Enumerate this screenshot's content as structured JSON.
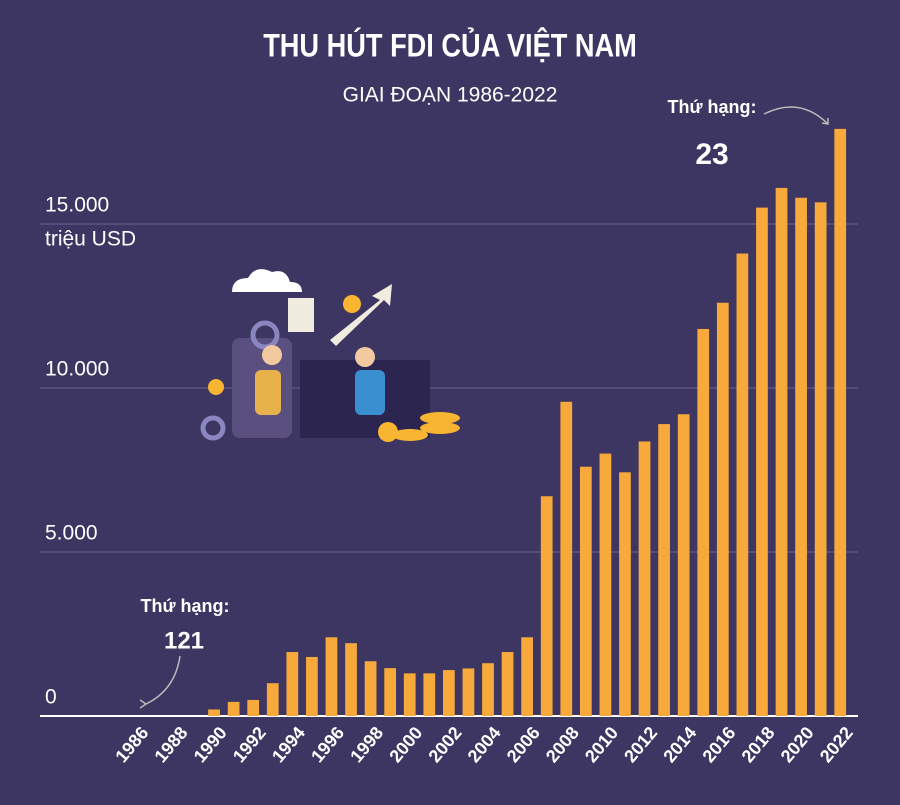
{
  "chart_data": {
    "type": "bar",
    "title": "THU HÚT FDI CỦA VIỆT NAM",
    "subtitle": "GIAI ĐOẠN 1986-2022",
    "y_label": "triệu USD",
    "categories": [
      "1986",
      null,
      "1988",
      null,
      "1990",
      null,
      "1992",
      null,
      "1994",
      null,
      "1996",
      null,
      "1998",
      null,
      "2000",
      null,
      "2002",
      null,
      "2004",
      null,
      "2006",
      null,
      "2008",
      null,
      "2010",
      null,
      "2012",
      null,
      "2014",
      null,
      "2016",
      null,
      "2018",
      null,
      "2020",
      null,
      "2022"
    ],
    "values": [
      0,
      0,
      0,
      0,
      200,
      430,
      490,
      1000,
      1950,
      1800,
      2400,
      2220,
      1670,
      1460,
      1300,
      1300,
      1400,
      1450,
      1610,
      1950,
      2400,
      6700,
      9580,
      7600,
      8000,
      7430,
      8370,
      8900,
      9200,
      11800,
      12600,
      14100,
      15500,
      16100,
      15800,
      15660,
      17900
    ],
    "color": "#f7a93b",
    "ylim": [
      0,
      18000
    ],
    "yticks": [
      {
        "value": 0,
        "label": "0"
      },
      {
        "value": 5000,
        "label": "5.000"
      },
      {
        "value": 10000,
        "label": "10.000"
      },
      {
        "value": 15000,
        "label": "15.000"
      }
    ],
    "grid": true,
    "annotations": [
      {
        "label": "Thứ hạng:",
        "value": "121"
      },
      {
        "label": "Thứ hạng:",
        "value": "23"
      }
    ]
  }
}
